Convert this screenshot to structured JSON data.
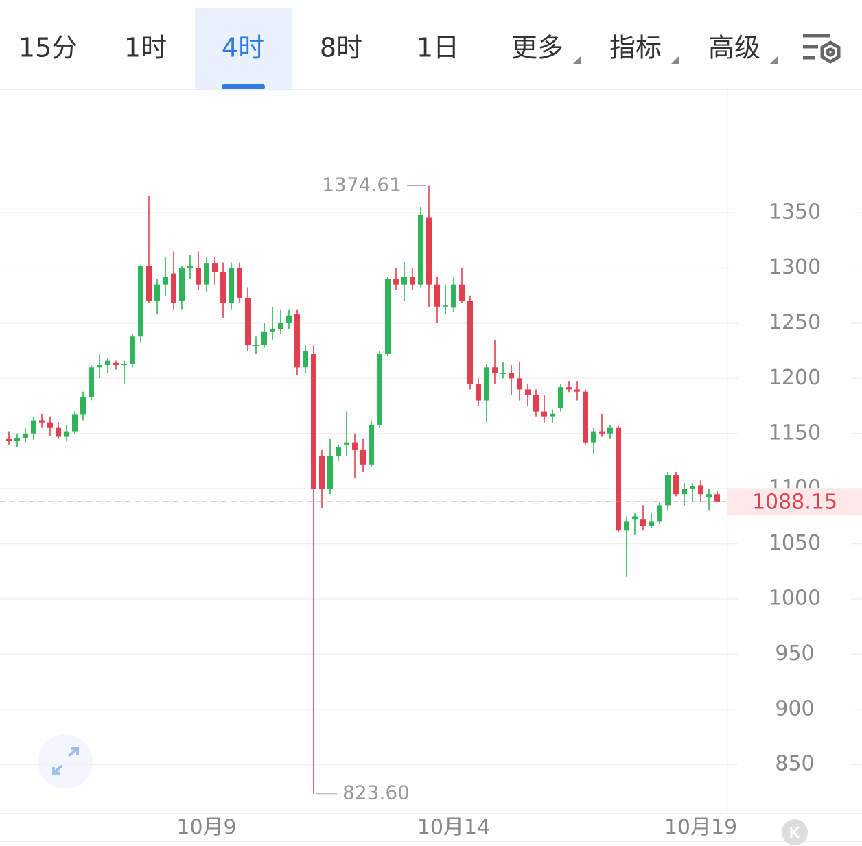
{
  "tabs": {
    "items": [
      "15分",
      "1时",
      "4时",
      "8时",
      "1日",
      "更多",
      "指标",
      "高级"
    ],
    "active": 2
  },
  "chart_data": {
    "type": "candlestick",
    "categories": [
      null,
      null,
      null,
      null,
      null,
      null,
      null,
      null,
      null,
      null,
      null,
      null,
      null,
      null,
      null,
      null,
      null,
      null,
      null,
      null,
      null,
      null,
      null,
      null,
      "10月9",
      null,
      null,
      null,
      null,
      null,
      null,
      null,
      null,
      null,
      null,
      null,
      null,
      null,
      null,
      null,
      null,
      null,
      null,
      null,
      null,
      null,
      null,
      null,
      null,
      null,
      null,
      null,
      null,
      null,
      "10月14",
      null,
      null,
      null,
      null,
      null,
      null,
      null,
      null,
      null,
      null,
      null,
      null,
      null,
      null,
      null,
      null,
      null,
      null,
      null,
      null,
      null,
      null,
      null,
      null,
      null,
      null,
      null,
      null,
      null,
      "10月19",
      null,
      null
    ],
    "open": [
      1145,
      1143,
      1146,
      1150,
      1162,
      1160,
      1155,
      1147,
      1152,
      1167,
      1183,
      1210,
      1212,
      1214,
      1212,
      1213,
      1238,
      1302,
      1270,
      1285,
      1295,
      1270,
      1300,
      1300,
      1285,
      1304,
      1296,
      1268,
      1300,
      1273,
      1230,
      1230,
      1242,
      1245,
      1250,
      1258,
      1210,
      1222,
      1130,
      1100,
      1130,
      1140,
      1142,
      1135,
      1122,
      1158,
      1222,
      1290,
      1285,
      1292,
      1285,
      1346,
      1285,
      1265,
      1264,
      1285,
      1270,
      1195,
      1180,
      1210,
      1205,
      1205,
      1200,
      1190,
      1185,
      1170,
      1165,
      1173,
      1192,
      1190,
      1188,
      1142,
      1152,
      1150,
      1155,
      1062,
      1072,
      1072,
      1066,
      1070,
      1085,
      1112,
      1095,
      1100,
      1103,
      1092,
      1095
    ],
    "high": [
      1152,
      1150,
      1155,
      1165,
      1168,
      1165,
      1160,
      1158,
      1170,
      1188,
      1212,
      1222,
      1218,
      1216,
      1216,
      1240,
      1303,
      1365,
      1290,
      1310,
      1315,
      1302,
      1312,
      1315,
      1310,
      1310,
      1305,
      1305,
      1305,
      1282,
      1238,
      1250,
      1265,
      1262,
      1262,
      1262,
      1230,
      1230,
      1135,
      1145,
      1140,
      1170,
      1150,
      1145,
      1162,
      1225,
      1292,
      1300,
      1305,
      1300,
      1355,
      1374.61,
      1292,
      1285,
      1292,
      1300,
      1275,
      1200,
      1213,
      1235,
      1215,
      1212,
      1215,
      1195,
      1190,
      1185,
      1172,
      1195,
      1197,
      1197,
      1190,
      1155,
      1168,
      1158,
      1157,
      1075,
      1078,
      1085,
      1078,
      1088,
      1115,
      1115,
      1105,
      1105,
      1108,
      1100,
      1098
    ],
    "low": [
      1140,
      1138,
      1142,
      1144,
      1155,
      1148,
      1145,
      1143,
      1150,
      1162,
      1180,
      1200,
      1205,
      1208,
      1195,
      1210,
      1232,
      1268,
      1258,
      1275,
      1262,
      1262,
      1290,
      1280,
      1278,
      1285,
      1255,
      1262,
      1268,
      1225,
      1222,
      1228,
      1235,
      1240,
      1245,
      1203,
      1205,
      823.6,
      1082,
      1095,
      1125,
      1130,
      1110,
      1115,
      1120,
      1155,
      1220,
      1280,
      1270,
      1280,
      1282,
      1265,
      1250,
      1258,
      1260,
      1268,
      1190,
      1175,
      1160,
      1195,
      1200,
      1185,
      1180,
      1175,
      1165,
      1160,
      1160,
      1170,
      1187,
      1180,
      1140,
      1132,
      1147,
      1145,
      1060,
      1020,
      1058,
      1062,
      1064,
      1068,
      1080,
      1093,
      1085,
      1088,
      1088,
      1080,
      1088
    ],
    "close": [
      1143,
      1146,
      1150,
      1162,
      1160,
      1155,
      1147,
      1152,
      1167,
      1183,
      1210,
      1212,
      1216,
      1212,
      1213,
      1238,
      1302,
      1270,
      1285,
      1292,
      1268,
      1300,
      1302,
      1285,
      1304,
      1296,
      1268,
      1300,
      1273,
      1230,
      1230,
      1242,
      1245,
      1250,
      1257,
      1210,
      1225,
      1100,
      1100,
      1130,
      1138,
      1142,
      1135,
      1122,
      1158,
      1222,
      1290,
      1285,
      1292,
      1285,
      1348,
      1285,
      1265,
      1266,
      1285,
      1270,
      1195,
      1180,
      1210,
      1205,
      1205,
      1200,
      1190,
      1185,
      1170,
      1165,
      1168,
      1192,
      1190,
      1188,
      1142,
      1152,
      1150,
      1155,
      1062,
      1070,
      1075,
      1066,
      1070,
      1085,
      1112,
      1095,
      1100,
      1102,
      1095,
      1095,
      1088.15
    ],
    "up_color": "#2fb45a",
    "down_color": "#e0404f",
    "ylim": [
      806,
      1462
    ],
    "yticks": [
      850,
      900,
      950,
      1000,
      1050,
      1100,
      1150,
      1200,
      1250,
      1300,
      1350
    ],
    "grid": true,
    "max_label": 1374.61,
    "min_label": {
      "value": 823.6,
      "label": "823.60"
    },
    "last_price": 1088.15
  }
}
